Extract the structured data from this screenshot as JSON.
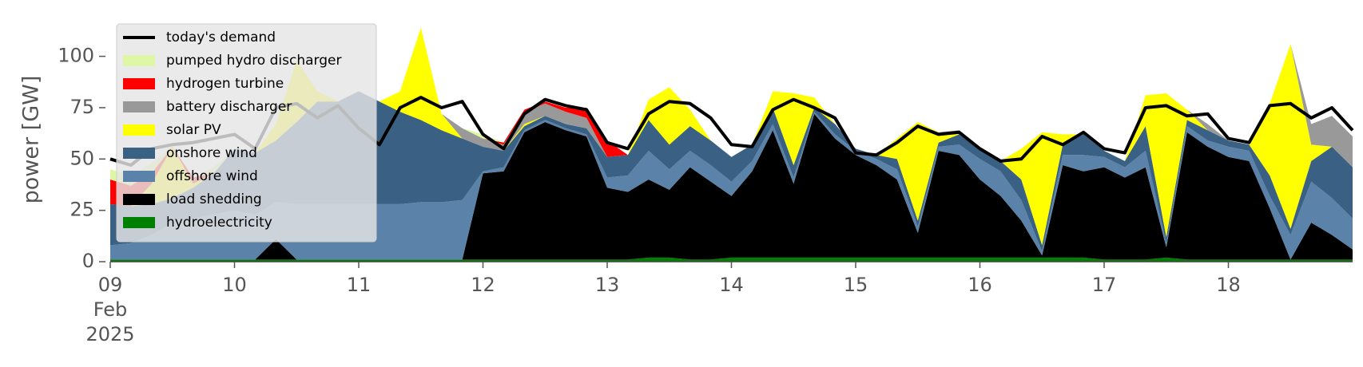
{
  "chart_data": {
    "type": "stacked-area",
    "ylabel": "power [GW]",
    "x": [
      "2025-02-09T00:00",
      "2025-02-09T04:00",
      "2025-02-09T08:00",
      "2025-02-09T12:00",
      "2025-02-09T16:00",
      "2025-02-09T20:00",
      "2025-02-10T00:00",
      "2025-02-10T04:00",
      "2025-02-10T08:00",
      "2025-02-10T12:00",
      "2025-02-10T16:00",
      "2025-02-10T20:00",
      "2025-02-11T00:00",
      "2025-02-11T04:00",
      "2025-02-11T08:00",
      "2025-02-11T12:00",
      "2025-02-11T16:00",
      "2025-02-11T20:00",
      "2025-02-12T00:00",
      "2025-02-12T04:00",
      "2025-02-12T08:00",
      "2025-02-12T12:00",
      "2025-02-12T16:00",
      "2025-02-12T20:00",
      "2025-02-13T00:00",
      "2025-02-13T04:00",
      "2025-02-13T08:00",
      "2025-02-13T12:00",
      "2025-02-13T16:00",
      "2025-02-13T20:00",
      "2025-02-14T00:00",
      "2025-02-14T04:00",
      "2025-02-14T08:00",
      "2025-02-14T12:00",
      "2025-02-14T16:00",
      "2025-02-14T20:00",
      "2025-02-15T00:00",
      "2025-02-15T04:00",
      "2025-02-15T08:00",
      "2025-02-15T12:00",
      "2025-02-15T16:00",
      "2025-02-15T20:00",
      "2025-02-16T00:00",
      "2025-02-16T04:00",
      "2025-02-16T08:00",
      "2025-02-16T12:00",
      "2025-02-16T16:00",
      "2025-02-16T20:00",
      "2025-02-17T00:00",
      "2025-02-17T04:00",
      "2025-02-17T08:00",
      "2025-02-17T12:00",
      "2025-02-17T16:00",
      "2025-02-17T20:00",
      "2025-02-18T00:00",
      "2025-02-18T04:00",
      "2025-02-18T08:00",
      "2025-02-18T12:00",
      "2025-02-18T16:00",
      "2025-02-18T20:00",
      "2025-02-19T00:00"
    ],
    "xlim": [
      "2025-02-09T00:00",
      "2025-02-19T00:00"
    ],
    "xticks": [
      {
        "value": "2025-02-09T00:00",
        "label": "09\nFeb\n2025"
      },
      {
        "value": "2025-02-10T00:00",
        "label": "10"
      },
      {
        "value": "2025-02-11T00:00",
        "label": "11"
      },
      {
        "value": "2025-02-12T00:00",
        "label": "12"
      },
      {
        "value": "2025-02-13T00:00",
        "label": "13"
      },
      {
        "value": "2025-02-14T00:00",
        "label": "14"
      },
      {
        "value": "2025-02-15T00:00",
        "label": "15"
      },
      {
        "value": "2025-02-16T00:00",
        "label": "16"
      },
      {
        "value": "2025-02-17T00:00",
        "label": "17"
      },
      {
        "value": "2025-02-18T00:00",
        "label": "18"
      }
    ],
    "ylim": [
      0,
      115
    ],
    "yticks": [
      0,
      25,
      50,
      75,
      100
    ],
    "grid": false,
    "legend": "upper left",
    "series": [
      {
        "name": "hydroelectricity",
        "color": "#008000",
        "values": [
          1,
          1,
          1,
          1,
          1,
          1,
          1,
          1,
          1,
          1,
          1,
          1,
          1,
          1,
          1,
          1,
          1,
          1,
          1,
          1,
          1,
          1,
          1,
          1,
          1,
          1,
          2,
          2,
          1,
          1,
          2,
          2,
          2,
          2,
          2,
          2,
          2,
          2,
          2,
          2,
          2,
          2,
          2,
          2,
          2,
          2,
          2,
          2,
          1,
          1,
          1,
          2,
          1,
          1,
          1,
          1,
          1,
          1,
          1,
          1,
          1
        ]
      },
      {
        "name": "load shedding",
        "color": "#000000",
        "values": [
          0,
          0,
          0,
          0,
          0,
          0,
          0,
          0,
          10,
          0,
          0,
          0,
          0,
          0,
          0,
          0,
          0,
          0,
          42,
          43,
          62,
          67,
          63,
          60,
          35,
          33,
          38,
          33,
          45,
          38,
          30,
          42,
          62,
          36,
          70,
          58,
          50,
          45,
          38,
          12,
          52,
          50,
          38,
          30,
          18,
          1,
          45,
          42,
          45,
          40,
          45,
          5,
          62,
          55,
          50,
          48,
          25,
          0,
          18,
          12,
          5
        ]
      },
      {
        "name": "offshore wind",
        "color": "#5b82a8",
        "values": [
          7,
          8,
          12,
          18,
          20,
          22,
          24,
          22,
          18,
          27,
          27,
          27,
          27,
          27,
          27,
          28,
          28,
          29,
          1,
          2,
          1,
          1,
          1,
          1,
          5,
          8,
          14,
          10,
          8,
          8,
          7,
          5,
          3,
          3,
          1,
          2,
          2,
          3,
          5,
          3,
          2,
          5,
          10,
          12,
          10,
          2,
          5,
          8,
          5,
          5,
          8,
          2,
          3,
          3,
          5,
          5,
          6,
          12,
          20,
          18,
          15
        ]
      },
      {
        "name": "onshore wind",
        "color": "#3a6183",
        "values": [
          20,
          18,
          15,
          12,
          15,
          20,
          30,
          30,
          30,
          40,
          50,
          50,
          55,
          50,
          45,
          40,
          35,
          30,
          12,
          8,
          2,
          2,
          2,
          3,
          10,
          10,
          15,
          12,
          12,
          12,
          12,
          8,
          8,
          6,
          2,
          5,
          1,
          2,
          5,
          3,
          2,
          5,
          5,
          5,
          10,
          3,
          5,
          10,
          3,
          3,
          12,
          3,
          3,
          5,
          3,
          3,
          10,
          3,
          10,
          25,
          25
        ]
      },
      {
        "name": "solar PV",
        "color": "#ffff00",
        "values": [
          0,
          0,
          10,
          25,
          2,
          0,
          0,
          0,
          8,
          30,
          5,
          0,
          0,
          0,
          10,
          45,
          8,
          0,
          0,
          0,
          1,
          0,
          0,
          0,
          0,
          0,
          10,
          28,
          8,
          0,
          0,
          0,
          8,
          35,
          5,
          0,
          0,
          0,
          10,
          48,
          5,
          0,
          0,
          0,
          15,
          55,
          5,
          0,
          0,
          0,
          15,
          70,
          5,
          0,
          0,
          0,
          35,
          90,
          8,
          0,
          0
        ]
      },
      {
        "name": "battery discharger",
        "color": "#999999",
        "values": [
          0,
          0,
          0,
          0,
          0,
          0,
          0,
          0,
          0,
          0,
          0,
          0,
          0,
          0,
          0,
          0,
          0,
          5,
          4,
          3,
          6,
          6,
          6,
          5,
          0,
          0,
          0,
          0,
          0,
          0,
          0,
          0,
          0,
          0,
          0,
          0,
          0,
          0,
          0,
          0,
          0,
          2,
          0,
          0,
          0,
          0,
          0,
          0,
          0,
          0,
          0,
          0,
          0,
          3,
          0,
          0,
          0,
          0,
          10,
          15,
          15
        ]
      },
      {
        "name": "hydrogen turbine",
        "color": "#ff0000",
        "values": [
          12,
          10,
          5,
          0,
          3,
          0,
          0,
          0,
          0,
          0,
          0,
          0,
          0,
          0,
          0,
          0,
          0,
          0,
          0,
          1,
          1,
          1,
          2,
          5,
          8,
          0,
          0,
          0,
          0,
          0,
          0,
          0,
          0,
          0,
          0,
          0,
          0,
          0,
          0,
          0,
          0,
          0,
          0,
          0,
          0,
          0,
          0,
          0,
          0,
          0,
          0,
          0,
          0,
          0,
          0,
          0,
          0,
          0,
          0,
          0,
          0
        ]
      },
      {
        "name": "pumped hydro discharger",
        "color": "#ddf7a6",
        "values": [
          5,
          5,
          5,
          0,
          0,
          3,
          0,
          0,
          0,
          0,
          0,
          0,
          0,
          0,
          0,
          0,
          0,
          0,
          2,
          0,
          0,
          0,
          0,
          0,
          0,
          0,
          0,
          0,
          0,
          0,
          0,
          0,
          0,
          0,
          0,
          0,
          0,
          0,
          0,
          0,
          0,
          0,
          0,
          0,
          0,
          0,
          0,
          0,
          0,
          0,
          0,
          0,
          0,
          0,
          0,
          0,
          0,
          0,
          0,
          0,
          0
        ]
      }
    ],
    "line_series": [
      {
        "name": "today's demand",
        "color": "#000000",
        "values": [
          50,
          47,
          55,
          57,
          58,
          60,
          62,
          55,
          75,
          77,
          70,
          76,
          65,
          57,
          75,
          80,
          75,
          78,
          62,
          55,
          72,
          79,
          76,
          74,
          58,
          55,
          72,
          78,
          77,
          70,
          57,
          56,
          74,
          79,
          75,
          70,
          53,
          52,
          58,
          66,
          62,
          63,
          55,
          49,
          50,
          61,
          57,
          63,
          55,
          53,
          75,
          76,
          71,
          72,
          60,
          58,
          76,
          77,
          70,
          75,
          64
        ]
      }
    ]
  }
}
